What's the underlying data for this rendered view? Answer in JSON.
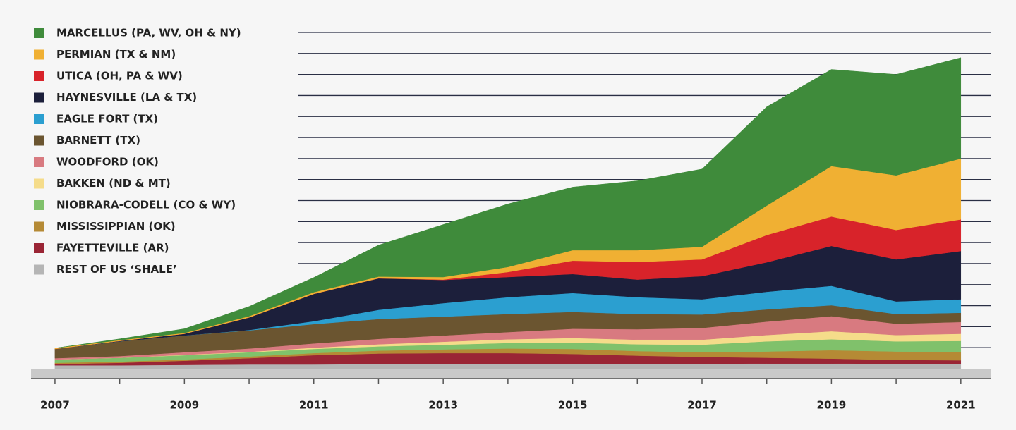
{
  "chart_data": {
    "type": "stacked-area",
    "x": [
      2007,
      2008,
      2009,
      2010,
      2011,
      2012,
      2013,
      2014,
      2015,
      2016,
      2017,
      2018,
      2019,
      2020,
      2021
    ],
    "xlim": [
      2006.63,
      2021.46
    ],
    "xticks": [
      2007,
      2009,
      2011,
      2013,
      2015,
      2017,
      2019,
      2021
    ],
    "ylim": [
      0,
      80
    ],
    "yticks": [
      5,
      10,
      15,
      20,
      25,
      30,
      35,
      40,
      45,
      50,
      55,
      60,
      65,
      70,
      75,
      80
    ],
    "grid": true,
    "legend": "top-left",
    "series": [
      {
        "name": "MARCELLUS (PA, WV, OH & NY)",
        "color": "#3f8b3b",
        "values": [
          0,
          0.3,
          1.0,
          2.3,
          3.5,
          7.5,
          12.5,
          15,
          15,
          16.5,
          18.5,
          23.5,
          23,
          24,
          24
        ]
      },
      {
        "name": "PERMIAN (TX & NM)",
        "color": "#f0b033",
        "values": [
          0.2,
          0.2,
          0.2,
          0.3,
          0.4,
          0.4,
          0.6,
          1.2,
          2.5,
          2.8,
          3,
          7,
          12,
          13,
          14.5
        ]
      },
      {
        "name": "UTICA (OH, PA & WV)",
        "color": "#d8232a",
        "values": [
          0,
          0,
          0,
          0,
          0,
          0,
          0.1,
          1.2,
          3.2,
          4.2,
          4,
          6.5,
          7,
          7,
          7.5
        ]
      },
      {
        "name": "HAYNESVILLE (LA & TX)",
        "color": "#1c1f3b",
        "values": [
          0,
          0.1,
          0.4,
          3,
          6.5,
          7.5,
          5.5,
          4.8,
          4.5,
          4.2,
          5.5,
          7,
          9.5,
          10,
          11.5
        ]
      },
      {
        "name": "EAGLE FORT (TX)",
        "color": "#2b9fd0",
        "values": [
          0,
          0,
          0,
          0.1,
          0.7,
          2.2,
          3.2,
          4,
          4.5,
          4,
          3.6,
          4.2,
          4.6,
          3,
          3.2
        ]
      },
      {
        "name": "BARNETT (TX)",
        "color": "#6b5530",
        "values": [
          2.2,
          3.5,
          4,
          4.3,
          4.6,
          4.7,
          4.5,
          4.3,
          4,
          3.6,
          3.2,
          2.9,
          2.6,
          2.3,
          2.2
        ]
      },
      {
        "name": "WOODFORD (OK)",
        "color": "#d87a80",
        "values": [
          0.3,
          0.4,
          0.6,
          0.8,
          1,
          1.3,
          1.5,
          1.7,
          2.2,
          2.5,
          2.8,
          3.2,
          3.6,
          2.7,
          2.8
        ]
      },
      {
        "name": "BAKKEN (ND & MT)",
        "color": "#f5dc8a",
        "values": [
          0,
          0,
          0.1,
          0.1,
          0.3,
          0.5,
          0.7,
          0.9,
          1.1,
          1.1,
          1.2,
          1.5,
          1.9,
          1.5,
          1.7
        ]
      },
      {
        "name": "NIOBRARA-CODELL (CO & WY)",
        "color": "#80c16b",
        "values": [
          0.8,
          0.9,
          1,
          1,
          1,
          1,
          1.1,
          1.3,
          1.5,
          1.6,
          1.8,
          2.4,
          2.6,
          2.4,
          2.6
        ]
      },
      {
        "name": "MISSISSIPPIAN (OK)",
        "color": "#b58a35",
        "values": [
          0.3,
          0.3,
          0.3,
          0.4,
          0.5,
          0.7,
          0.9,
          1.1,
          1.2,
          1.1,
          1.1,
          1.5,
          2,
          2,
          2
        ]
      },
      {
        "name": "FAYETTEVILLE (AR)",
        "color": "#9a2535",
        "values": [
          0.3,
          0.6,
          1,
          1.5,
          2.2,
          2.5,
          2.6,
          2.6,
          2.4,
          2,
          1.7,
          1.4,
          1.2,
          1,
          0.9
        ]
      },
      {
        "name": "REST OF US ‘SHALE’",
        "color": "#b5b5b5",
        "values": [
          0.8,
          0.8,
          0.9,
          1,
          1,
          1.1,
          1.1,
          1.1,
          1.1,
          1.1,
          1.1,
          1.2,
          1.2,
          1.1,
          1.1
        ]
      }
    ]
  }
}
